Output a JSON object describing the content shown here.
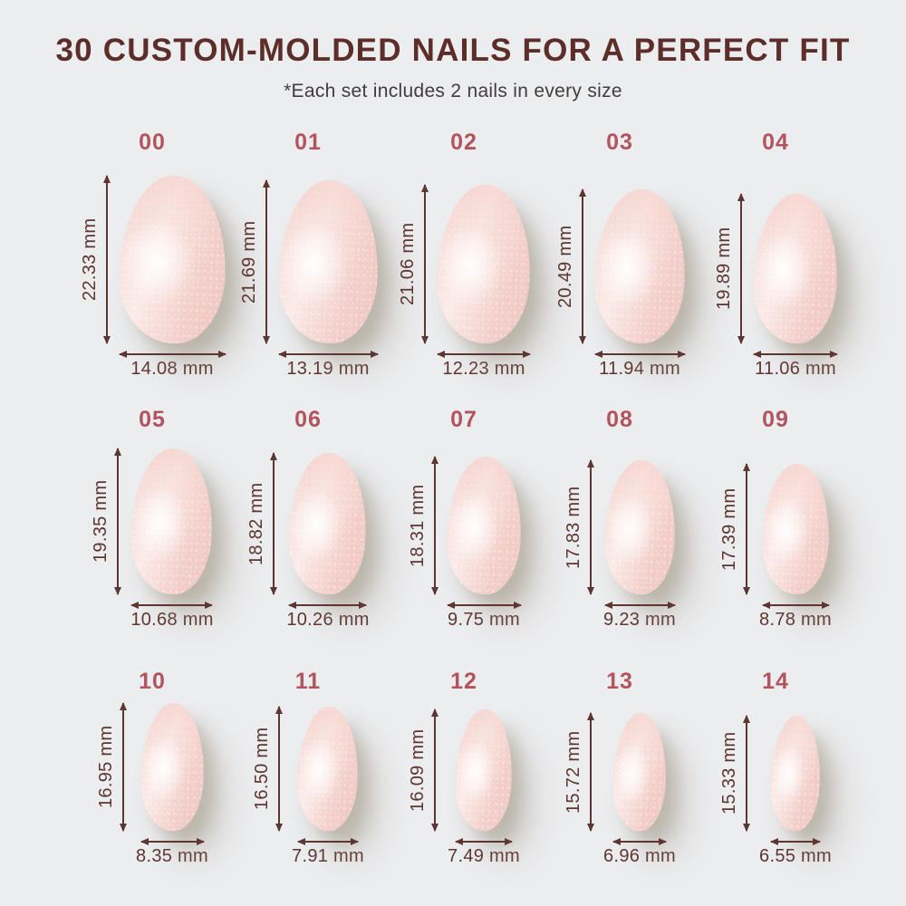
{
  "header": {
    "title": "30 CUSTOM-MOLDED NAILS FOR A PERFECT FIT",
    "subtitle": "*Each set includes 2 nails in every size"
  },
  "unit": "mm",
  "colors": {
    "background": "#ECEDEF",
    "title_text": "#5C2D29",
    "subtitle_text": "#433C3C",
    "size_number": "#B2545E",
    "dimension_text_and_arrows": "#5D3531",
    "nail_pink": "#F4D2CD",
    "nail_highlight": "#FDF2F0",
    "nail_shadow": "#B9AE9C"
  },
  "sizes": [
    {
      "id": "00",
      "height_mm": 22.33,
      "width_mm": 14.08,
      "height_label": "22.33 mm",
      "width_label": "14.08 mm"
    },
    {
      "id": "01",
      "height_mm": 21.69,
      "width_mm": 13.19,
      "height_label": "21.69 mm",
      "width_label": "13.19 mm"
    },
    {
      "id": "02",
      "height_mm": 21.06,
      "width_mm": 12.23,
      "height_label": "21.06 mm",
      "width_label": "12.23 mm"
    },
    {
      "id": "03",
      "height_mm": 20.49,
      "width_mm": 11.94,
      "height_label": "20.49 mm",
      "width_label": "11.94 mm"
    },
    {
      "id": "04",
      "height_mm": 19.89,
      "width_mm": 11.06,
      "height_label": "19.89 mm",
      "width_label": "11.06 mm"
    },
    {
      "id": "05",
      "height_mm": 19.35,
      "width_mm": 10.68,
      "height_label": "19.35 mm",
      "width_label": "10.68 mm"
    },
    {
      "id": "06",
      "height_mm": 18.82,
      "width_mm": 10.26,
      "height_label": "18.82 mm",
      "width_label": "10.26 mm"
    },
    {
      "id": "07",
      "height_mm": 18.31,
      "width_mm": 9.75,
      "height_label": "18.31 mm",
      "width_label": "9.75 mm"
    },
    {
      "id": "08",
      "height_mm": 17.83,
      "width_mm": 9.23,
      "height_label": "17.83 mm",
      "width_label": "9.23 mm"
    },
    {
      "id": "09",
      "height_mm": 17.39,
      "width_mm": 8.78,
      "height_label": "17.39 mm",
      "width_label": "8.78 mm"
    },
    {
      "id": "10",
      "height_mm": 16.95,
      "width_mm": 8.35,
      "height_label": "16.95 mm",
      "width_label": "8.35 mm"
    },
    {
      "id": "11",
      "height_mm": 16.5,
      "width_mm": 7.91,
      "height_label": "16.50 mm",
      "width_label": "7.91 mm"
    },
    {
      "id": "12",
      "height_mm": 16.09,
      "width_mm": 7.49,
      "height_label": "16.09 mm",
      "width_label": "7.49 mm"
    },
    {
      "id": "13",
      "height_mm": 15.72,
      "width_mm": 6.96,
      "height_label": "15.72 mm",
      "width_label": "6.96 mm"
    },
    {
      "id": "14",
      "height_mm": 15.33,
      "width_mm": 6.55,
      "height_label": "15.33 mm",
      "width_label": "6.55 mm"
    }
  ]
}
